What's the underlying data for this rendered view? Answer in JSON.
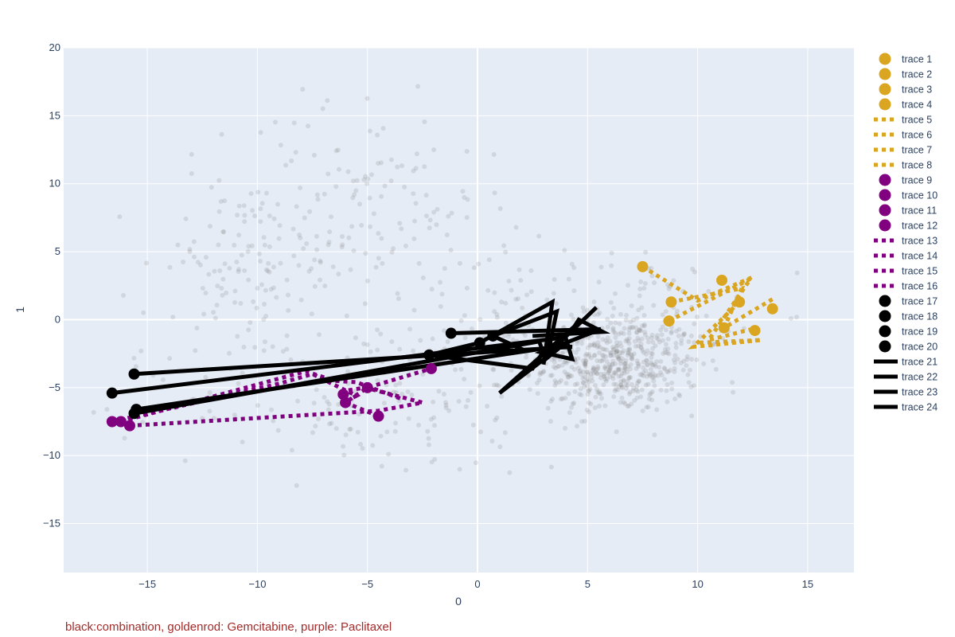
{
  "caption": "black:combination, goldenrod: Gemcitabine, purple: Paclitaxel",
  "colors": {
    "combination": "#000000",
    "gemcitabine": "#DAA520",
    "paclitaxel": "#800080",
    "background_points": "#808080",
    "plot_bg": "#E5ECF6",
    "caption": "#A52A2A"
  },
  "chart_data": {
    "type": "scatter",
    "xlabel": "0",
    "ylabel": "1",
    "xlim": [
      -18.8,
      17.1
    ],
    "ylim": [
      -18.6,
      20
    ],
    "xticks": [
      -15,
      -10,
      -5,
      0,
      5,
      10,
      15
    ],
    "yticks": [
      -15,
      -10,
      -5,
      0,
      5,
      10,
      15,
      20
    ],
    "grid": true,
    "legend_position": "right",
    "background_clusters": [
      {
        "center": [
          6.3,
          -3.3
        ],
        "spread": [
          1.9,
          1.8
        ],
        "count": 520
      },
      {
        "center": [
          5.5,
          0.5
        ],
        "spread": [
          3.0,
          2.2
        ],
        "count": 140
      },
      {
        "center": [
          -10.5,
          3.5
        ],
        "spread": [
          2.4,
          3.6
        ],
        "count": 140
      },
      {
        "center": [
          -5.0,
          9.5
        ],
        "spread": [
          2.6,
          4.2
        ],
        "count": 90
      },
      {
        "center": [
          -5.0,
          -6.0
        ],
        "spread": [
          4.5,
          2.8
        ],
        "count": 150
      },
      {
        "center": [
          -1.0,
          2.0
        ],
        "spread": [
          4.0,
          4.5
        ],
        "count": 60
      }
    ],
    "series": [
      {
        "name": "trace 1",
        "group": "gemcitabine",
        "kind": "markers",
        "x": [
          7.5,
          8.8
        ],
        "y": [
          3.9,
          1.3
        ]
      },
      {
        "name": "trace 2",
        "group": "gemcitabine",
        "kind": "markers",
        "x": [
          8.7,
          11.2
        ],
        "y": [
          -0.1,
          -0.6
        ]
      },
      {
        "name": "trace 3",
        "group": "gemcitabine",
        "kind": "markers",
        "x": [
          11.1,
          11.9
        ],
        "y": [
          2.9,
          1.3
        ]
      },
      {
        "name": "trace 4",
        "group": "gemcitabine",
        "kind": "markers",
        "x": [
          12.6,
          13.4
        ],
        "y": [
          -0.8,
          0.8
        ]
      },
      {
        "name": "trace 5",
        "group": "gemcitabine",
        "kind": "lines",
        "x": [
          7.5,
          10.0,
          12.6
        ],
        "y": [
          3.9,
          1.4,
          3.2
        ]
      },
      {
        "name": "trace 6",
        "group": "gemcitabine",
        "kind": "lines",
        "x": [
          8.8,
          12.0,
          11.2,
          13.5
        ],
        "y": [
          1.3,
          2.3,
          -0.6,
          1.6
        ]
      },
      {
        "name": "trace 7",
        "group": "gemcitabine",
        "kind": "lines",
        "x": [
          8.7,
          12.4,
          10.5,
          12.7
        ],
        "y": [
          -0.1,
          3.0,
          -1.5,
          -0.6
        ]
      },
      {
        "name": "trace 8",
        "group": "gemcitabine",
        "kind": "lines",
        "x": [
          11.9,
          9.8,
          12.9,
          10.0
        ],
        "y": [
          1.3,
          -2.0,
          -1.5,
          -1.7
        ]
      },
      {
        "name": "trace 9",
        "group": "paclitaxel",
        "kind": "markers",
        "x": [
          -16.6,
          -16.2
        ],
        "y": [
          -7.5,
          -7.5
        ]
      },
      {
        "name": "trace 10",
        "group": "paclitaxel",
        "kind": "markers",
        "x": [
          -15.8,
          -4.5
        ],
        "y": [
          -7.8,
          -7.1
        ]
      },
      {
        "name": "trace 11",
        "group": "paclitaxel",
        "kind": "markers",
        "x": [
          -6.0,
          -5.0
        ],
        "y": [
          -6.1,
          -5.0
        ]
      },
      {
        "name": "trace 12",
        "group": "paclitaxel",
        "kind": "markers",
        "x": [
          -6.1,
          -2.1
        ],
        "y": [
          -5.5,
          -3.6
        ]
      },
      {
        "name": "trace 13",
        "group": "paclitaxel",
        "kind": "lines",
        "x": [
          -15.8,
          -4.5,
          -2.5,
          -5.1,
          -6.3
        ],
        "y": [
          -7.8,
          -6.7,
          -6.1,
          -5.0,
          -5.3
        ]
      },
      {
        "name": "trace 14",
        "group": "paclitaxel",
        "kind": "lines",
        "x": [
          -16.6,
          -9.0,
          -7.5,
          -5.5,
          -6.1
        ],
        "y": [
          -7.5,
          -4.7,
          -4.0,
          -5.6,
          -6.1
        ]
      },
      {
        "name": "trace 15",
        "group": "paclitaxel",
        "kind": "lines",
        "x": [
          -16.2,
          -7.8,
          -6.5,
          -5.5,
          -3.5
        ],
        "y": [
          -7.5,
          -3.8,
          -4.5,
          -4.6,
          -5.8
        ]
      },
      {
        "name": "trace 16",
        "group": "paclitaxel",
        "kind": "lines",
        "x": [
          -4.5,
          -6.0,
          -5.0,
          -2.1
        ],
        "y": [
          -7.1,
          -6.1,
          -5.0,
          -3.6
        ]
      },
      {
        "name": "trace 17",
        "group": "combination",
        "kind": "markers",
        "x": [
          -15.6,
          -16.6
        ],
        "y": [
          -4.0,
          -5.4
        ]
      },
      {
        "name": "trace 18",
        "group": "combination",
        "kind": "markers",
        "x": [
          -15.5,
          -15.6
        ],
        "y": [
          -6.6,
          -6.9
        ]
      },
      {
        "name": "trace 19",
        "group": "combination",
        "kind": "markers",
        "x": [
          -1.2,
          0.7
        ],
        "y": [
          -1.0,
          -1.2
        ]
      },
      {
        "name": "trace 20",
        "group": "combination",
        "kind": "markers",
        "x": [
          -2.2,
          0.1
        ],
        "y": [
          -2.6,
          -1.7
        ]
      },
      {
        "name": "trace 21",
        "group": "combination",
        "kind": "lines",
        "x": [
          -15.6,
          4.3,
          3.2,
          2.5,
          -2.2,
          0.1,
          3.4,
          3.0
        ],
        "y": [
          -4.0,
          -2.0,
          -1.8,
          -3.6,
          -2.6,
          -1.7,
          1.3,
          -3.3
        ]
      },
      {
        "name": "trace 22",
        "group": "combination",
        "kind": "lines",
        "x": [
          -16.6,
          4.0,
          4.3,
          2.9,
          5.6,
          -1.2
        ],
        "y": [
          -5.4,
          -1.3,
          -2.9,
          -2.4,
          -0.7,
          -1.0
        ]
      },
      {
        "name": "trace 23",
        "group": "combination",
        "kind": "lines",
        "x": [
          -15.5,
          3.5,
          2.2,
          0.7,
          3.6,
          3.2,
          5.4
        ],
        "y": [
          -6.6,
          -2.0,
          -2.3,
          -1.2,
          0.6,
          -2.5,
          0.9
        ]
      },
      {
        "name": "trace 24",
        "group": "combination",
        "kind": "lines",
        "x": [
          -15.6,
          2.8,
          3.1,
          4.0,
          1.0,
          4.4,
          4.6,
          5.7,
          2.5
        ],
        "y": [
          -6.9,
          -1.6,
          -2.9,
          -1.7,
          -5.4,
          -0.5,
          0.0,
          -0.9,
          -1.2
        ]
      }
    ]
  }
}
